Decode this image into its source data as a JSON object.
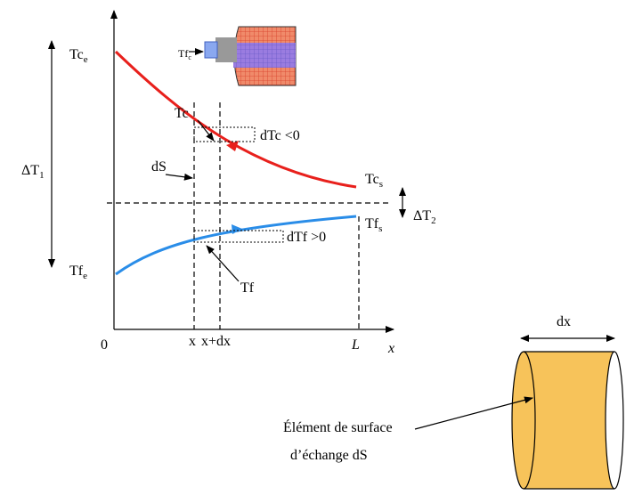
{
  "diagram": {
    "labels": {
      "tc_in": {
        "text": "Tc",
        "sub": "e"
      },
      "tf_inset": {
        "text": "Tf",
        "sub": "c"
      },
      "tc_curve": {
        "text": "Tc"
      },
      "dtc": {
        "text": "dTc <0"
      },
      "ds": {
        "text": "dS"
      },
      "delta_t1": {
        "text": "ΔT",
        "sub": "1"
      },
      "tc_out": {
        "text": "Tc",
        "sub": "s"
      },
      "delta_t2": {
        "text": "ΔT",
        "sub": "2"
      },
      "tf_out": {
        "text": "Tf",
        "sub": "s"
      },
      "dtf": {
        "text": "dTf >0"
      },
      "tf_in": {
        "text": "Tf",
        "sub": "e"
      },
      "tf_curve": {
        "text": "Tf"
      },
      "origin": {
        "text": "0"
      },
      "x_pos": {
        "text": "x"
      },
      "x_dx": {
        "text": "x+dx"
      },
      "length": {
        "text": "L"
      },
      "x_axis": {
        "text": "x"
      }
    },
    "element": {
      "width_label": "dx",
      "caption_line1": "Élément de surface",
      "caption_line2": "d’échange dS"
    }
  }
}
